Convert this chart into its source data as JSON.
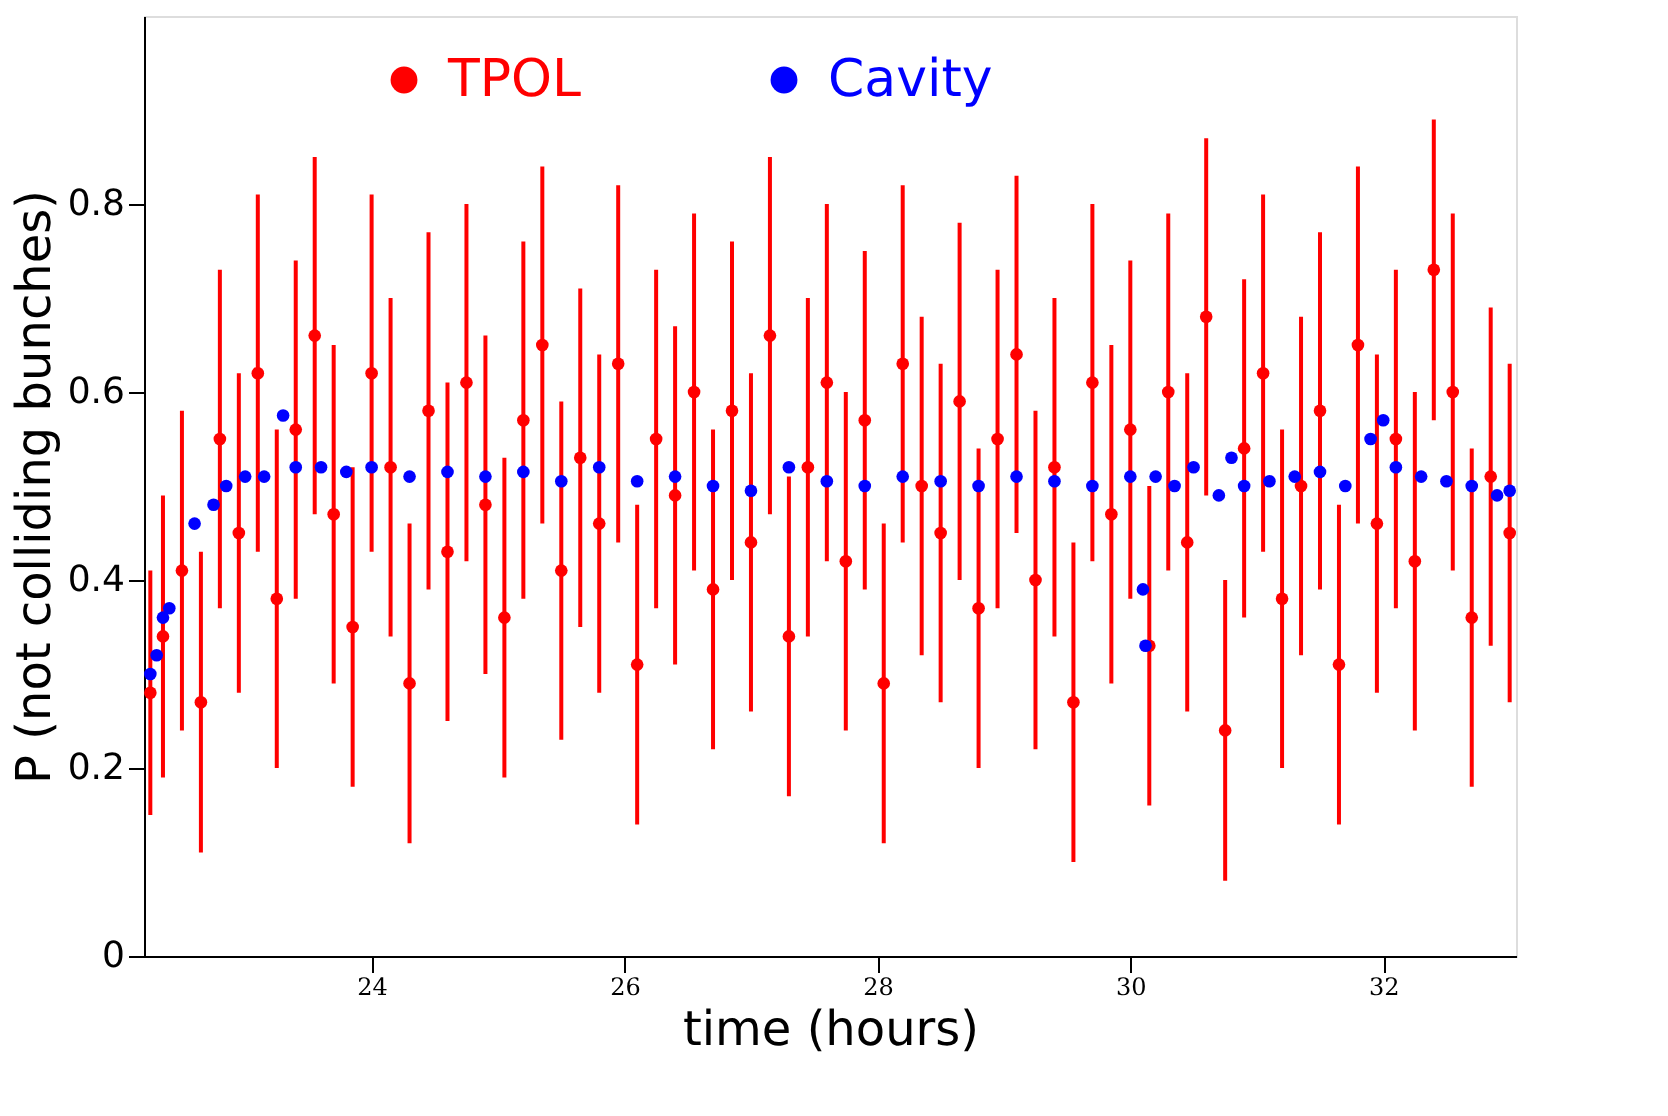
{
  "chart_data": {
    "type": "scatter",
    "xlabel": "time (hours)",
    "ylabel": "P (not colliding bunches)",
    "xlim": [
      22.2,
      33.05
    ],
    "ylim": [
      0,
      1.0
    ],
    "xticks": [
      24,
      26,
      28,
      30,
      32
    ],
    "yticks": [
      0,
      0.2,
      0.4,
      0.6,
      0.8
    ],
    "legend": "top",
    "marker": "circle",
    "grid": false,
    "series": [
      {
        "name": "TPOL",
        "color": "#ff0000",
        "x": [
          22.25,
          22.35,
          22.5,
          22.65,
          22.8,
          22.95,
          23.1,
          23.25,
          23.4,
          23.55,
          23.7,
          23.85,
          24.0,
          24.15,
          24.3,
          24.45,
          24.6,
          24.75,
          24.9,
          25.05,
          25.2,
          25.35,
          25.5,
          25.65,
          25.8,
          25.95,
          26.1,
          26.25,
          26.4,
          26.55,
          26.7,
          26.85,
          27.0,
          27.15,
          27.3,
          27.45,
          27.6,
          27.75,
          27.9,
          28.05,
          28.2,
          28.35,
          28.5,
          28.65,
          28.8,
          28.95,
          29.1,
          29.25,
          29.4,
          29.55,
          29.7,
          29.85,
          30.0,
          30.15,
          30.3,
          30.45,
          30.6,
          30.75,
          30.9,
          31.05,
          31.2,
          31.35,
          31.5,
          31.65,
          31.8,
          31.95,
          32.1,
          32.25,
          32.4,
          32.55,
          32.7,
          32.85,
          33.0
        ],
        "values": [
          0.28,
          0.34,
          0.41,
          0.27,
          0.55,
          0.45,
          0.62,
          0.38,
          0.56,
          0.66,
          0.47,
          0.35,
          0.62,
          0.52,
          0.29,
          0.58,
          0.43,
          0.61,
          0.48,
          0.36,
          0.57,
          0.65,
          0.41,
          0.53,
          0.46,
          0.63,
          0.31,
          0.55,
          0.49,
          0.6,
          0.39,
          0.58,
          0.44,
          0.66,
          0.34,
          0.52,
          0.61,
          0.42,
          0.57,
          0.29,
          0.63,
          0.5,
          0.45,
          0.59,
          0.37,
          0.55,
          0.64,
          0.4,
          0.52,
          0.27,
          0.61,
          0.47,
          0.56,
          0.33,
          0.6,
          0.44,
          0.68,
          0.24,
          0.54,
          0.62,
          0.38,
          0.5,
          0.58,
          0.31,
          0.65,
          0.46,
          0.55,
          0.42,
          0.73,
          0.6,
          0.36,
          0.51,
          0.45
        ],
        "errors": [
          0.13,
          0.15,
          0.17,
          0.16,
          0.18,
          0.17,
          0.19,
          0.18,
          0.18,
          0.19,
          0.18,
          0.17,
          0.19,
          0.18,
          0.17,
          0.19,
          0.18,
          0.19,
          0.18,
          0.17,
          0.19,
          0.19,
          0.18,
          0.18,
          0.18,
          0.19,
          0.17,
          0.18,
          0.18,
          0.19,
          0.17,
          0.18,
          0.18,
          0.19,
          0.17,
          0.18,
          0.19,
          0.18,
          0.18,
          0.17,
          0.19,
          0.18,
          0.18,
          0.19,
          0.17,
          0.18,
          0.19,
          0.18,
          0.18,
          0.17,
          0.19,
          0.18,
          0.18,
          0.17,
          0.19,
          0.18,
          0.19,
          0.16,
          0.18,
          0.19,
          0.18,
          0.18,
          0.19,
          0.17,
          0.19,
          0.18,
          0.18,
          0.18,
          0.16,
          0.19,
          0.18,
          0.18,
          0.18
        ]
      },
      {
        "name": "Cavity",
        "color": "#0000ff",
        "x": [
          22.25,
          22.3,
          22.35,
          22.4,
          22.6,
          22.75,
          22.85,
          23.0,
          23.15,
          23.3,
          23.4,
          23.6,
          23.8,
          24.0,
          24.3,
          24.6,
          24.9,
          25.2,
          25.5,
          25.8,
          26.1,
          26.4,
          26.7,
          27.0,
          27.3,
          27.6,
          27.9,
          28.2,
          28.5,
          28.8,
          29.1,
          29.4,
          29.7,
          30.0,
          30.1,
          30.12,
          30.2,
          30.35,
          30.5,
          30.7,
          30.8,
          30.9,
          31.1,
          31.3,
          31.5,
          31.7,
          31.9,
          32.0,
          32.1,
          32.3,
          32.5,
          32.7,
          32.9,
          33.0
        ],
        "values": [
          0.3,
          0.32,
          0.36,
          0.37,
          0.46,
          0.48,
          0.5,
          0.51,
          0.51,
          0.575,
          0.52,
          0.52,
          0.515,
          0.52,
          0.51,
          0.515,
          0.51,
          0.515,
          0.505,
          0.52,
          0.505,
          0.51,
          0.5,
          0.495,
          0.52,
          0.505,
          0.5,
          0.51,
          0.505,
          0.5,
          0.51,
          0.505,
          0.5,
          0.51,
          0.39,
          0.33,
          0.51,
          0.5,
          0.52,
          0.49,
          0.53,
          0.5,
          0.505,
          0.51,
          0.515,
          0.5,
          0.55,
          0.57,
          0.52,
          0.51,
          0.505,
          0.5,
          0.49,
          0.495
        ]
      }
    ]
  }
}
